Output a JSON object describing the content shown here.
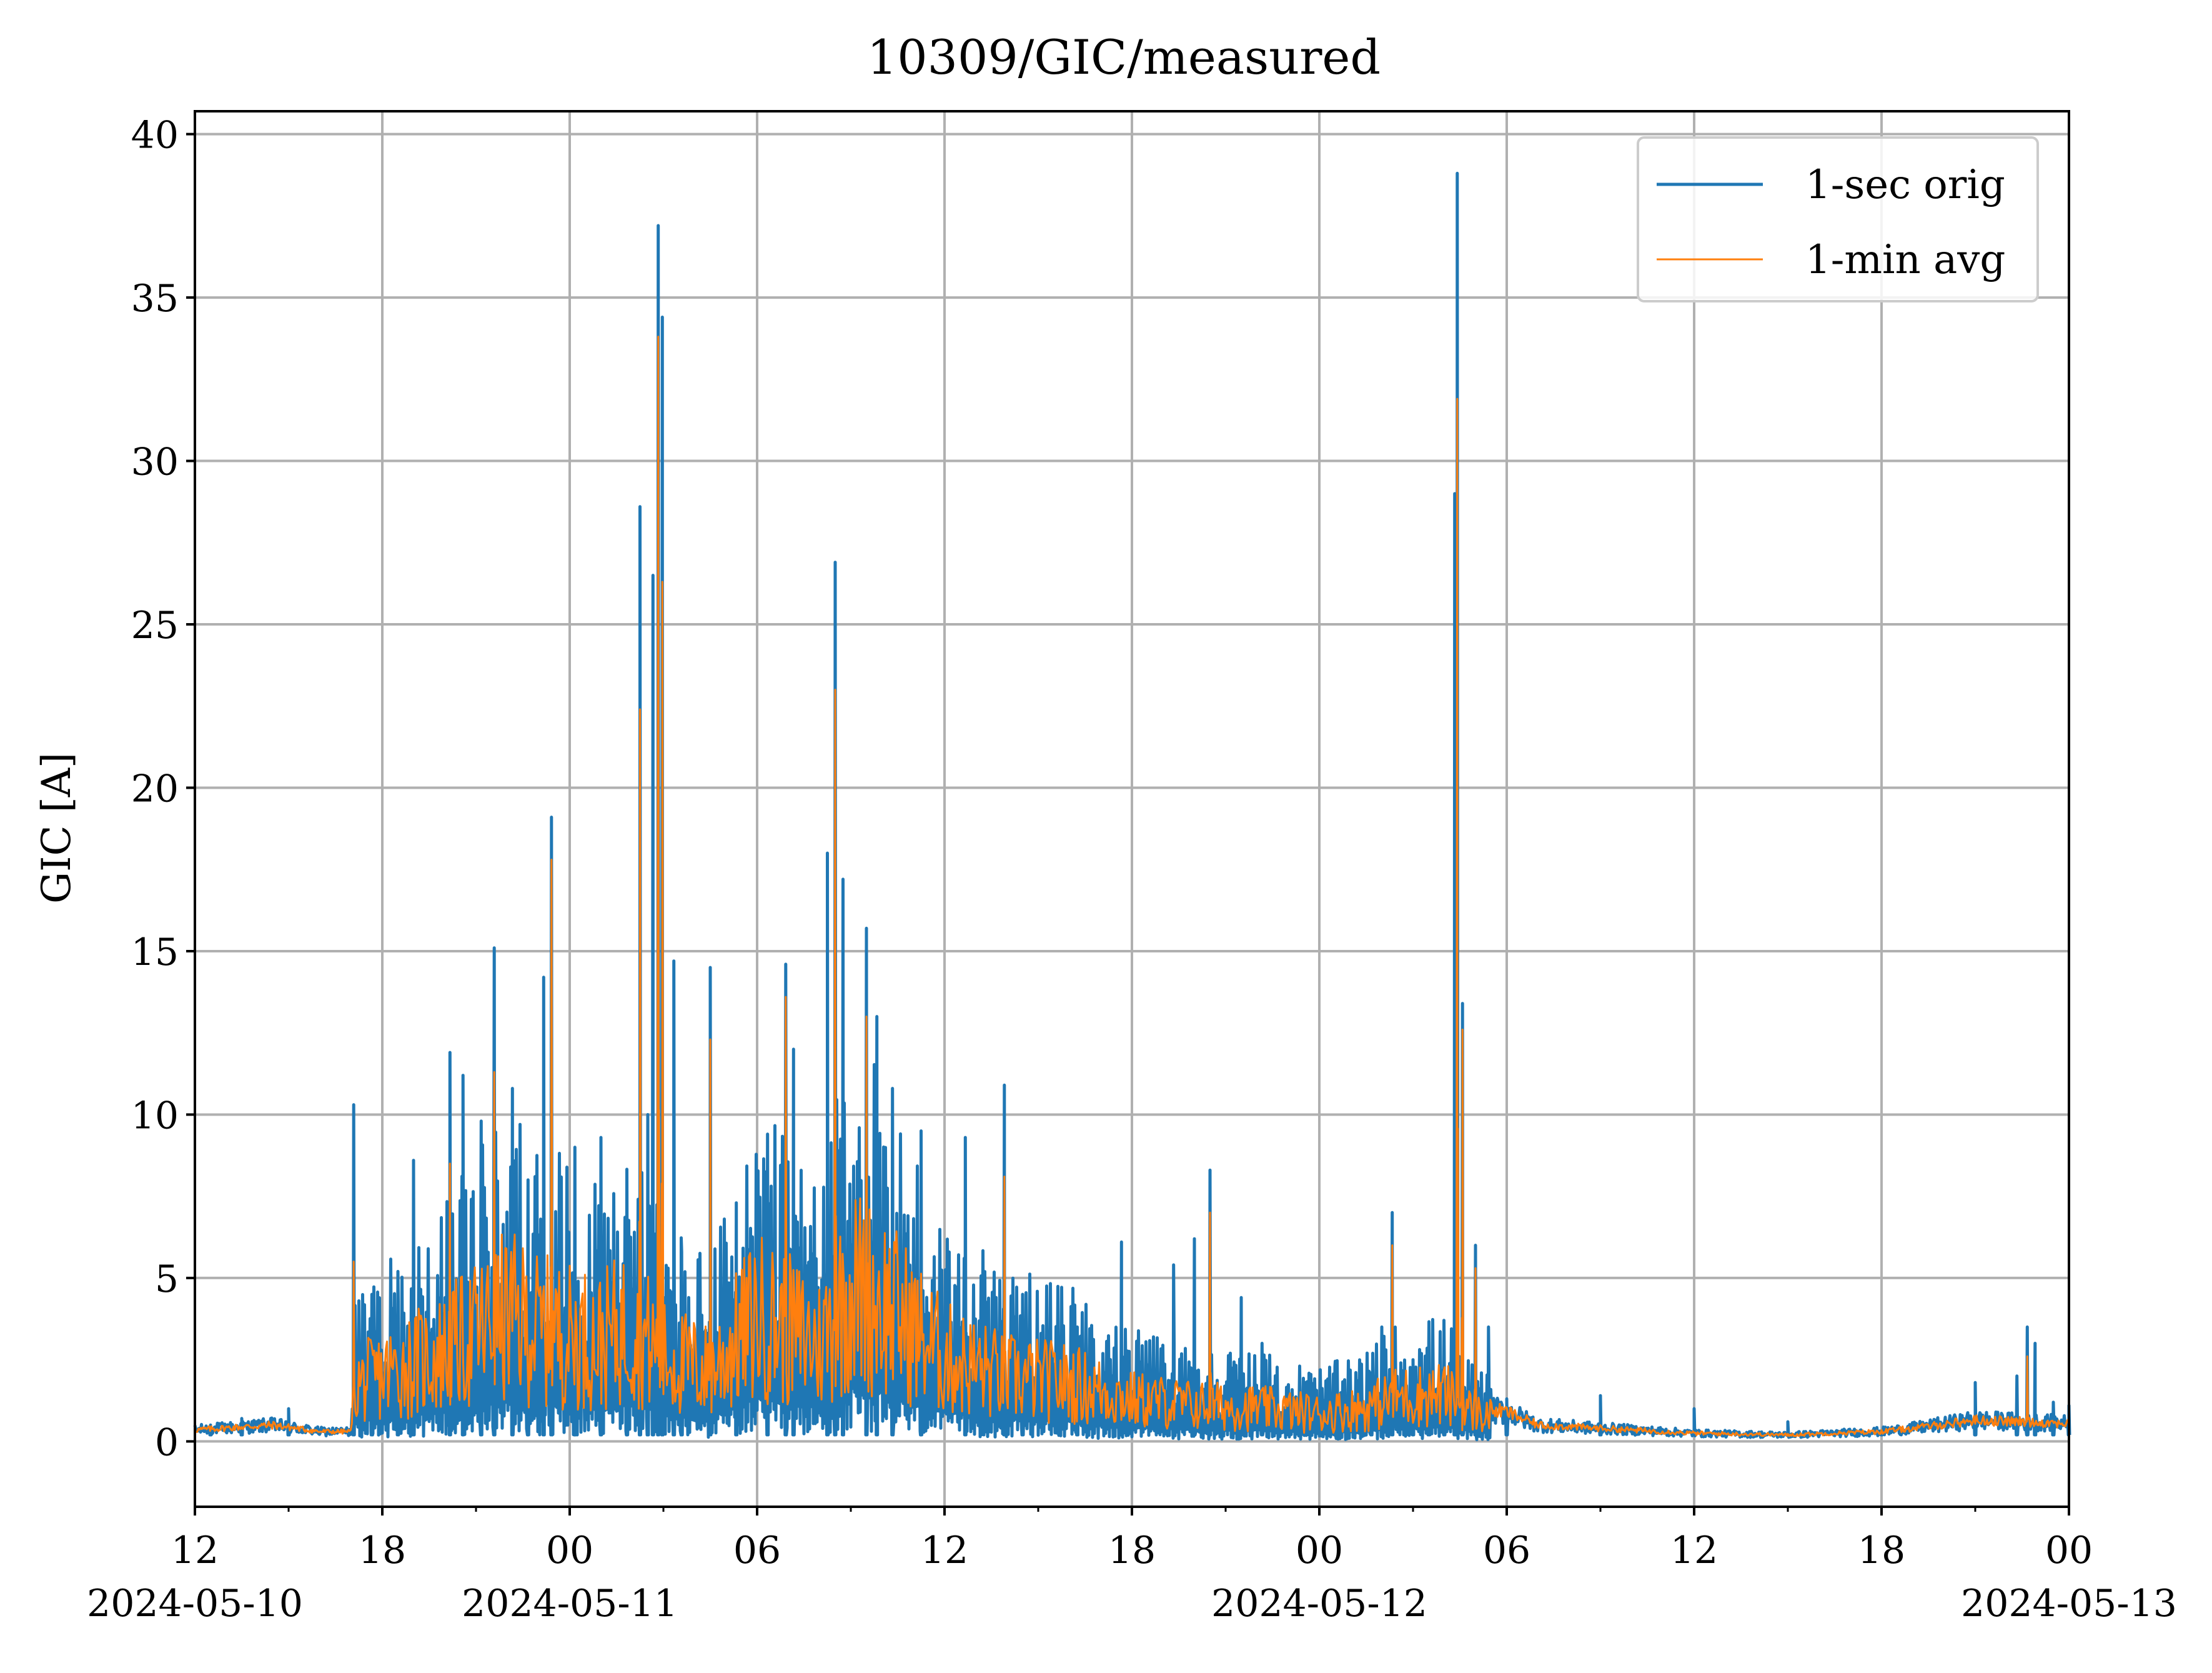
{
  "chart_data": {
    "type": "line",
    "title": "10309/GIC/measured",
    "xlabel": "",
    "ylabel": "GIC [A]",
    "xlim": [
      "2024-05-10 12:00",
      "2024-05-13 00:00"
    ],
    "ylim": [
      -2,
      40.7
    ],
    "grid": true,
    "legend_position": "upper right",
    "x_ticks": [
      {
        "time": "2024-05-10 12:00",
        "label": "12",
        "date_label": "2024-05-10"
      },
      {
        "time": "2024-05-10 18:00",
        "label": "18",
        "date_label": ""
      },
      {
        "time": "2024-05-11 00:00",
        "label": "00",
        "date_label": "2024-05-11"
      },
      {
        "time": "2024-05-11 06:00",
        "label": "06",
        "date_label": ""
      },
      {
        "time": "2024-05-11 12:00",
        "label": "12",
        "date_label": ""
      },
      {
        "time": "2024-05-11 18:00",
        "label": "18",
        "date_label": ""
      },
      {
        "time": "2024-05-12 00:00",
        "label": "00",
        "date_label": "2024-05-12"
      },
      {
        "time": "2024-05-12 06:00",
        "label": "06",
        "date_label": ""
      },
      {
        "time": "2024-05-12 12:00",
        "label": "12",
        "date_label": ""
      },
      {
        "time": "2024-05-12 18:00",
        "label": "18",
        "date_label": ""
      },
      {
        "time": "2024-05-13 00:00",
        "label": "00",
        "date_label": "2024-05-13"
      }
    ],
    "y_ticks": [
      0,
      5,
      10,
      15,
      20,
      25,
      30,
      35,
      40
    ],
    "colors": {
      "orig": "#1f77b4",
      "avg": "#ff7f0e",
      "grid": "#b0b0b0"
    },
    "series": [
      {
        "name": "1-sec orig",
        "color": "#1f77b4",
        "peaks": [
          {
            "time": "2024-05-10 12:30",
            "value": 0.5
          },
          {
            "time": "2024-05-10 13:30",
            "value": 0.7
          },
          {
            "time": "2024-05-10 15:00",
            "value": 1.0
          },
          {
            "time": "2024-05-10 17:05",
            "value": 10.3
          },
          {
            "time": "2024-05-10 17:40",
            "value": 4.5
          },
          {
            "time": "2024-05-10 18:30",
            "value": 5.2
          },
          {
            "time": "2024-05-10 19:00",
            "value": 8.6
          },
          {
            "time": "2024-05-10 20:10",
            "value": 11.9
          },
          {
            "time": "2024-05-10 20:35",
            "value": 11.2
          },
          {
            "time": "2024-05-10 21:10",
            "value": 9.8
          },
          {
            "time": "2024-05-10 21:35",
            "value": 15.1
          },
          {
            "time": "2024-05-10 22:10",
            "value": 10.8
          },
          {
            "time": "2024-05-10 22:40",
            "value": 8.0
          },
          {
            "time": "2024-05-10 23:10",
            "value": 14.2
          },
          {
            "time": "2024-05-10 23:25",
            "value": 19.1
          },
          {
            "time": "2024-05-11 00:10",
            "value": 9.0
          },
          {
            "time": "2024-05-11 01:00",
            "value": 9.3
          },
          {
            "time": "2024-05-11 01:50",
            "value": 7.0
          },
          {
            "time": "2024-05-11 02:15",
            "value": 28.6
          },
          {
            "time": "2024-05-11 02:30",
            "value": 10.0
          },
          {
            "time": "2024-05-11 02:40",
            "value": 26.5
          },
          {
            "time": "2024-05-11 02:50",
            "value": 37.2
          },
          {
            "time": "2024-05-11 02:58",
            "value": 34.4
          },
          {
            "time": "2024-05-11 03:20",
            "value": 14.7
          },
          {
            "time": "2024-05-11 03:35",
            "value": 5.8
          },
          {
            "time": "2024-05-11 04:30",
            "value": 14.5
          },
          {
            "time": "2024-05-11 05:20",
            "value": 7.3
          },
          {
            "time": "2024-05-11 06:20",
            "value": 9.4
          },
          {
            "time": "2024-05-11 06:55",
            "value": 14.6
          },
          {
            "time": "2024-05-11 07:10",
            "value": 12.0
          },
          {
            "time": "2024-05-11 08:15",
            "value": 18.0
          },
          {
            "time": "2024-05-11 08:30",
            "value": 26.9
          },
          {
            "time": "2024-05-11 08:45",
            "value": 17.2
          },
          {
            "time": "2024-05-11 09:30",
            "value": 15.7
          },
          {
            "time": "2024-05-11 09:50",
            "value": 13.0
          },
          {
            "time": "2024-05-11 10:20",
            "value": 10.8
          },
          {
            "time": "2024-05-11 11:15",
            "value": 9.5
          },
          {
            "time": "2024-05-11 12:40",
            "value": 9.3
          },
          {
            "time": "2024-05-11 13:55",
            "value": 10.9
          },
          {
            "time": "2024-05-11 14:30",
            "value": 4.5
          },
          {
            "time": "2024-05-11 16:15",
            "value": 3.5
          },
          {
            "time": "2024-05-11 17:40",
            "value": 6.1
          },
          {
            "time": "2024-05-11 19:20",
            "value": 5.4
          },
          {
            "time": "2024-05-11 20:00",
            "value": 6.2
          },
          {
            "time": "2024-05-11 20:30",
            "value": 8.3
          },
          {
            "time": "2024-05-11 21:30",
            "value": 4.4
          },
          {
            "time": "2024-05-11 22:10",
            "value": 3.0
          },
          {
            "time": "2024-05-12 00:30",
            "value": 2.3
          },
          {
            "time": "2024-05-12 01:40",
            "value": 2.1
          },
          {
            "time": "2024-05-12 02:00",
            "value": 3.5
          },
          {
            "time": "2024-05-12 02:20",
            "value": 7.0
          },
          {
            "time": "2024-05-12 03:00",
            "value": 2.5
          },
          {
            "time": "2024-05-12 03:30",
            "value": 2.6
          },
          {
            "time": "2024-05-12 04:00",
            "value": 2.5
          },
          {
            "time": "2024-05-12 04:20",
            "value": 29.0
          },
          {
            "time": "2024-05-12 04:25",
            "value": 38.8
          },
          {
            "time": "2024-05-12 04:35",
            "value": 13.4
          },
          {
            "time": "2024-05-12 05:00",
            "value": 6.0
          },
          {
            "time": "2024-05-12 05:25",
            "value": 3.5
          },
          {
            "time": "2024-05-12 06:00",
            "value": 1.3
          },
          {
            "time": "2024-05-12 09:00",
            "value": 1.4
          },
          {
            "time": "2024-05-12 12:00",
            "value": 1.0
          },
          {
            "time": "2024-05-12 15:00",
            "value": 0.6
          },
          {
            "time": "2024-05-12 18:00",
            "value": 0.3
          },
          {
            "time": "2024-05-12 21:00",
            "value": 1.8
          },
          {
            "time": "2024-05-12 22:20",
            "value": 2.0
          },
          {
            "time": "2024-05-12 22:40",
            "value": 3.5
          },
          {
            "time": "2024-05-12 22:55",
            "value": 3.0
          },
          {
            "time": "2024-05-12 23:30",
            "value": 1.2
          },
          {
            "time": "2024-05-13 00:00",
            "value": 1.1
          }
        ]
      },
      {
        "name": "1-min avg",
        "color": "#ff7f0e",
        "peaks": [
          {
            "time": "2024-05-10 17:05",
            "value": 5.5
          },
          {
            "time": "2024-05-10 20:10",
            "value": 8.5
          },
          {
            "time": "2024-05-10 21:35",
            "value": 11.3
          },
          {
            "time": "2024-05-10 23:25",
            "value": 17.8
          },
          {
            "time": "2024-05-11 02:15",
            "value": 22.4
          },
          {
            "time": "2024-05-11 02:50",
            "value": 33.8
          },
          {
            "time": "2024-05-11 02:58",
            "value": 26.3
          },
          {
            "time": "2024-05-11 04:30",
            "value": 12.3
          },
          {
            "time": "2024-05-11 06:55",
            "value": 13.6
          },
          {
            "time": "2024-05-11 08:30",
            "value": 23.0
          },
          {
            "time": "2024-05-11 09:30",
            "value": 13.0
          },
          {
            "time": "2024-05-11 13:55",
            "value": 8.1
          },
          {
            "time": "2024-05-11 20:30",
            "value": 7.0
          },
          {
            "time": "2024-05-12 02:20",
            "value": 6.0
          },
          {
            "time": "2024-05-12 04:25",
            "value": 31.9
          },
          {
            "time": "2024-05-12 04:35",
            "value": 12.6
          },
          {
            "time": "2024-05-12 05:00",
            "value": 5.3
          },
          {
            "time": "2024-05-12 22:40",
            "value": 2.6
          }
        ]
      }
    ]
  }
}
